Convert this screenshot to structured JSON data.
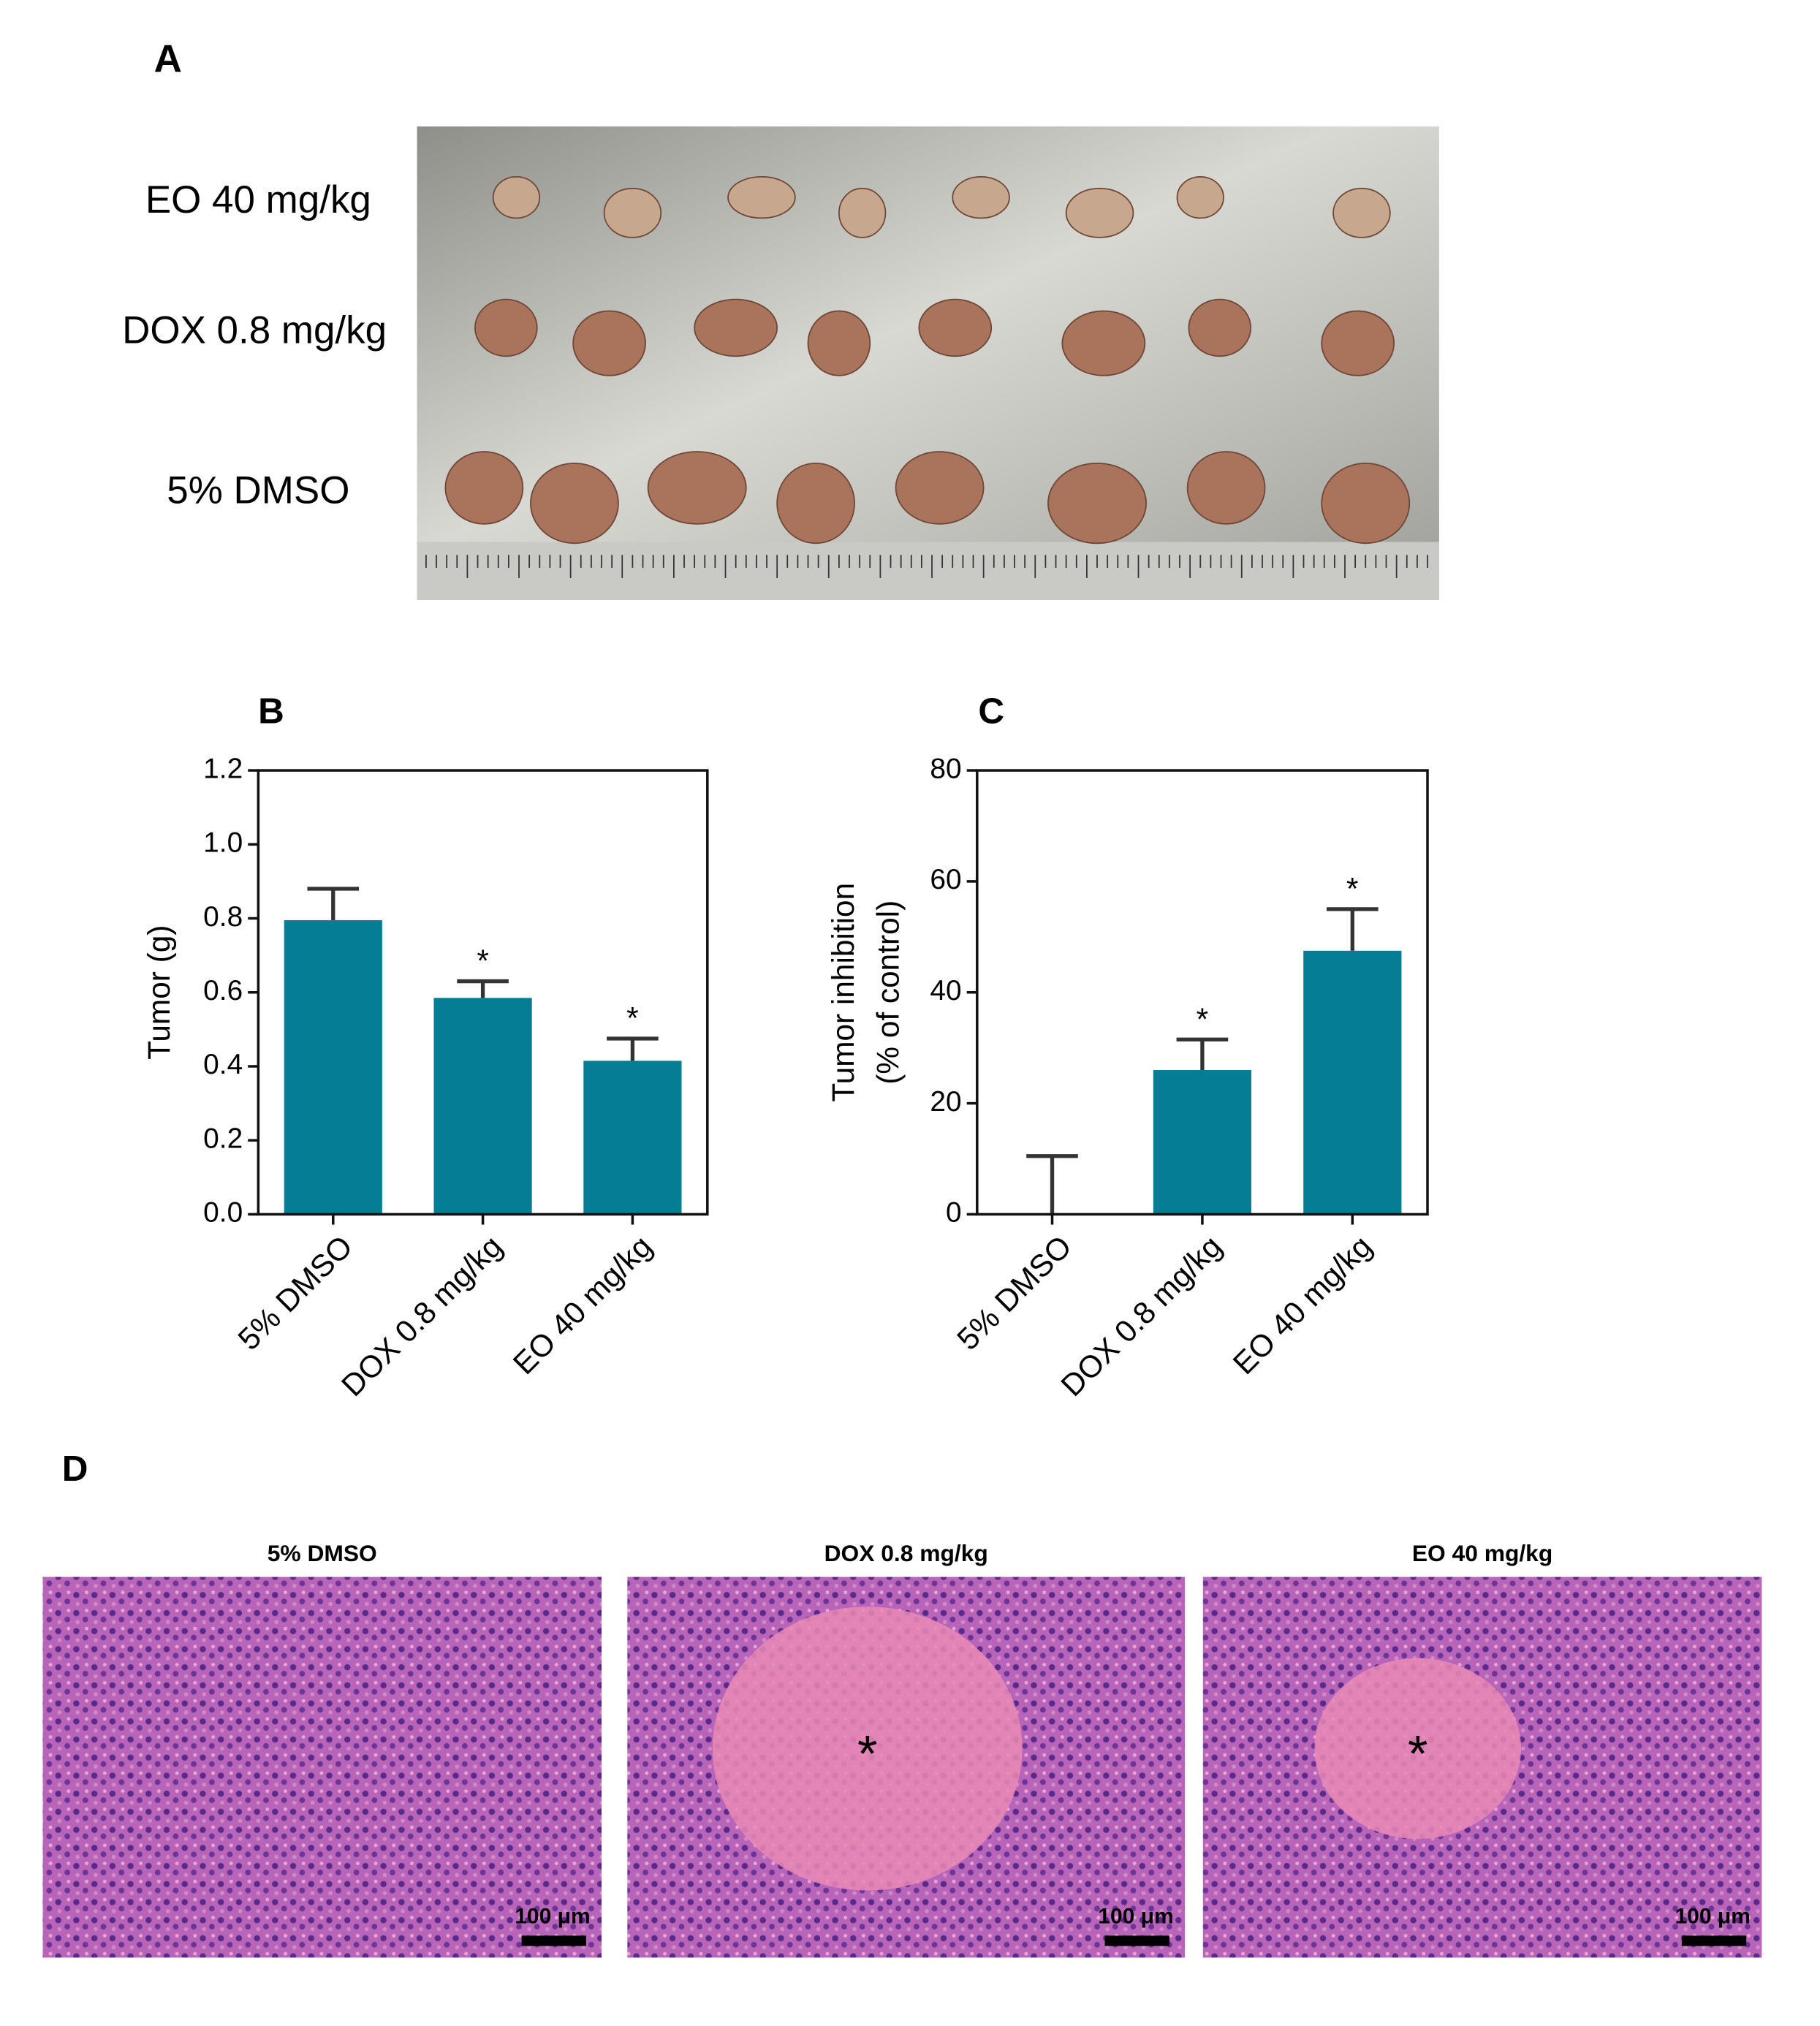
{
  "panels": {
    "a": "A",
    "b": "B",
    "c": "C",
    "d": "D"
  },
  "photo": {
    "rows": [
      "EO 40 mg/kg",
      "DOX 0.8 mg/kg",
      "5% DMSO"
    ]
  },
  "chart_data": [
    {
      "type": "bar",
      "ylabel": [
        "Tumor (g)"
      ],
      "categories": [
        "5% DMSO",
        "DOX 0.8 mg/kg",
        "EO 40 mg/kg"
      ],
      "values": [
        0.795,
        0.585,
        0.415
      ],
      "errors": [
        0.085,
        0.045,
        0.06
      ],
      "significance": [
        null,
        "*",
        "*"
      ],
      "color": "#057d94",
      "ylim": [
        0,
        1.2
      ],
      "yticks": [
        {
          "value": 0,
          "label": "0.0"
        },
        0.2,
        0.4,
        0.6,
        0.8,
        {
          "value": 1,
          "label": "1.0"
        },
        1.2
      ]
    },
    {
      "type": "bar",
      "ylabel": [
        "Tumor inhibition",
        "(% of control)"
      ],
      "categories": [
        "5% DMSO",
        "DOX 0.8 mg/kg",
        "EO 40 mg/kg"
      ],
      "values": [
        0,
        26,
        47.5
      ],
      "errors": [
        10.5,
        5.5,
        7.5
      ],
      "significance": [
        null,
        "*",
        "*"
      ],
      "color": "#057d94",
      "ylim": [
        0,
        80
      ],
      "yticks": [
        0,
        20,
        40,
        60,
        80
      ]
    }
  ],
  "histology": [
    {
      "title": "5% DMSO",
      "scale": "100 μm",
      "marker": null
    },
    {
      "title": "DOX 0.8 mg/kg",
      "scale": "100 μm",
      "marker": "*"
    },
    {
      "title": "EO 40 mg/kg",
      "scale": "100 μm",
      "marker": "*"
    }
  ]
}
